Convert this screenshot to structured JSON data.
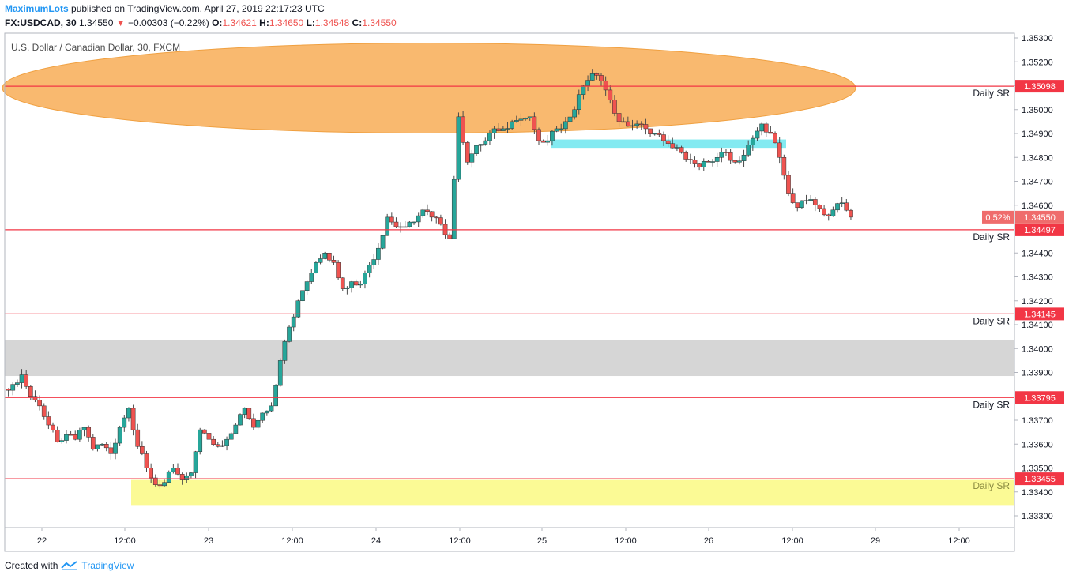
{
  "header": {
    "publisher": "MaximumLots",
    "published_text": "published on TradingView.com, April 27, 2019 22:17:23 UTC",
    "symbol": "FX:USDCAD, 30",
    "last": "1.34550",
    "change_arrow": "▼",
    "change": "−0.00303 (−0.22%)",
    "o_label": "O:",
    "o": "1.34621",
    "h_label": "H:",
    "h": "1.34650",
    "l_label": "L:",
    "l": "1.34548",
    "c_label": "C:",
    "c": "1.34550"
  },
  "footer": {
    "created_with": "Created with",
    "brand": "TradingView"
  },
  "colors": {
    "up": "#26a69a",
    "down": "#ef5350",
    "sr_line": "#f23645",
    "ellipse": "#f7a84b",
    "cyan_zone": "#75e8f0",
    "gray_zone": "#d6d6d6",
    "yellow_zone": "#fbfa8a",
    "price_badge": "#ef6c6c"
  },
  "chart_data": {
    "type": "candlestick",
    "title": "U.S. Dollar / Canadian Dollar, 30, FXCM",
    "x_ticks": [
      "22",
      "12:00",
      "23",
      "12:00",
      "24",
      "12:00",
      "25",
      "12:00",
      "26",
      "12:00",
      "29",
      "12:00"
    ],
    "y_ticks": [
      "1.35300",
      "1.35200",
      "1.35100",
      "1.35000",
      "1.34900",
      "1.34800",
      "1.34700",
      "1.34600",
      "1.34400",
      "1.34300",
      "1.34200",
      "1.34100",
      "1.34000",
      "1.33900",
      "1.33700",
      "1.33600",
      "1.33500",
      "1.33400",
      "1.33300"
    ],
    "ylim": [
      1.3325,
      1.3535
    ],
    "sr_levels": [
      {
        "value": 1.35098,
        "label": "1.35098",
        "note": "Daily SR"
      },
      {
        "value": 1.34497,
        "label": "1.34497",
        "note": "Daily SR"
      },
      {
        "value": 1.34145,
        "label": "1.34145",
        "note": "Daily SR"
      },
      {
        "value": 1.33795,
        "label": "1.33795",
        "note": "Daily SR"
      },
      {
        "value": 1.33455,
        "label": "1.33455",
        "note": "Daily SR"
      }
    ],
    "current_price": {
      "value": 1.3455,
      "label": "1.34550",
      "pct": "0.52%"
    },
    "zones": [
      {
        "kind": "rect",
        "from": 1.33885,
        "to": 1.34035,
        "color": "gray"
      },
      {
        "kind": "rect",
        "from": 1.33345,
        "to": 1.3345,
        "color": "yellow"
      },
      {
        "kind": "rect",
        "from": 1.3484,
        "to": 1.34875,
        "color": "cyan"
      },
      {
        "kind": "ellipse",
        "center": 1.3509,
        "color": "orange"
      }
    ],
    "close_path": [
      1.3385,
      1.3389,
      1.338,
      1.3376,
      1.3368,
      1.3361,
      1.3364,
      1.3362,
      1.3367,
      1.3358,
      1.336,
      1.3356,
      1.3367,
      1.3375,
      1.3359,
      1.335,
      1.3343,
      1.3344,
      1.335,
      1.3345,
      1.3348,
      1.3366,
      1.3362,
      1.3359,
      1.3362,
      1.3368,
      1.3375,
      1.3367,
      1.3373,
      1.3376,
      1.3395,
      1.3409,
      1.342,
      1.3428,
      1.3436,
      1.344,
      1.3436,
      1.3425,
      1.3428,
      1.3427,
      1.3435,
      1.3442,
      1.3455,
      1.3451,
      1.3451,
      1.3453,
      1.3458,
      1.3455,
      1.3452,
      1.3446,
      1.3497,
      1.3478,
      1.3485,
      1.3487,
      1.3492,
      1.3492,
      1.3495,
      1.3496,
      1.3497,
      1.3487,
      1.3487,
      1.3492,
      1.3495,
      1.35,
      1.351,
      1.3515,
      1.3512,
      1.3504,
      1.3495,
      1.3493,
      1.3494,
      1.3492,
      1.349,
      1.3487,
      1.3484,
      1.3482,
      1.3479,
      1.3476,
      1.3478,
      1.348,
      1.3482,
      1.3478,
      1.3481,
      1.3488,
      1.3494,
      1.349,
      1.348,
      1.3465,
      1.3459,
      1.3462,
      1.346,
      1.3456,
      1.3458,
      1.3461,
      1.3455
    ]
  }
}
